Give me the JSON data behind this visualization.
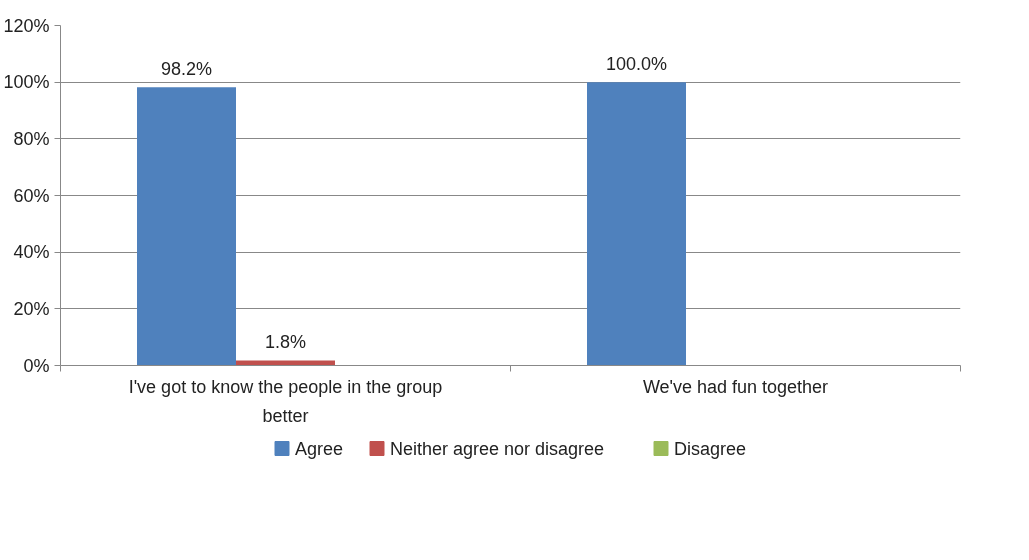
{
  "chart_data": {
    "type": "bar",
    "categories": [
      "I've got to know the people in the group better",
      "We've had fun together"
    ],
    "series": [
      {
        "name": "Agree",
        "color": "#4f81bd",
        "values": [
          98.2,
          100.0
        ],
        "value_labels": [
          "98.2%",
          "100.0%"
        ]
      },
      {
        "name": "Neither agree nor disagree",
        "color": "#c0504d",
        "values": [
          1.8,
          0
        ],
        "value_labels": [
          "1.8%",
          null
        ]
      },
      {
        "name": "Disagree",
        "color": "#9bbb59",
        "values": [
          0,
          0
        ],
        "value_labels": [
          null,
          null
        ]
      }
    ],
    "ylim": [
      0,
      120
    ],
    "yticks": [
      {
        "value": 0,
        "label": "0%"
      },
      {
        "value": 20,
        "label": "20%"
      },
      {
        "value": 40,
        "label": "40%"
      },
      {
        "value": 60,
        "label": "60%"
      },
      {
        "value": 80,
        "label": "80%"
      },
      {
        "value": 100,
        "label": "100%"
      },
      {
        "value": 120,
        "label": "120%"
      }
    ],
    "grid": "y",
    "legend": "bottom"
  }
}
